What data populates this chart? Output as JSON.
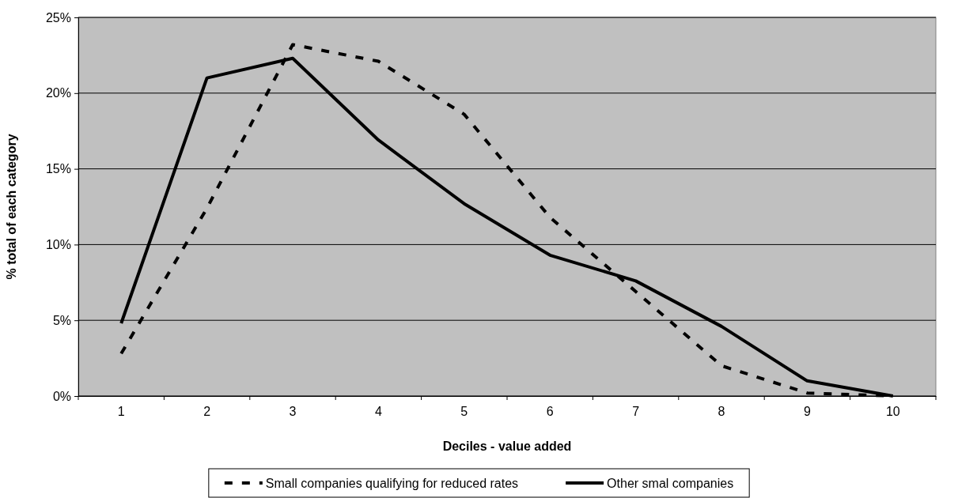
{
  "chart_data": {
    "type": "line",
    "xlabel": "Deciles - value added",
    "ylabel": "% total of each category",
    "categories": [
      "1",
      "2",
      "3",
      "4",
      "5",
      "6",
      "7",
      "8",
      "9",
      "10"
    ],
    "series": [
      {
        "name": "Small companies qualifying for reduced rates",
        "color": "#000000",
        "line_style": "dashed",
        "values": [
          2.8,
          12.4,
          23.2,
          22.1,
          18.6,
          11.8,
          6.9,
          2.0,
          0.2,
          0
        ]
      },
      {
        "name": "Other smal companies",
        "color": "#000000",
        "line_style": "solid",
        "values": [
          4.8,
          21.0,
          22.3,
          16.9,
          12.7,
          9.3,
          7.6,
          4.6,
          1.0,
          0
        ]
      }
    ],
    "ylim": [
      0,
      25
    ],
    "yticks": [
      {
        "value": 0,
        "label": "0%"
      },
      {
        "value": 5,
        "label": "5%"
      },
      {
        "value": 10,
        "label": "10%"
      },
      {
        "value": 15,
        "label": "15%"
      },
      {
        "value": 20,
        "label": "20%"
      },
      {
        "value": 25,
        "label": "25%"
      }
    ],
    "grid": "y",
    "legend": "bottom",
    "marker": "none"
  }
}
